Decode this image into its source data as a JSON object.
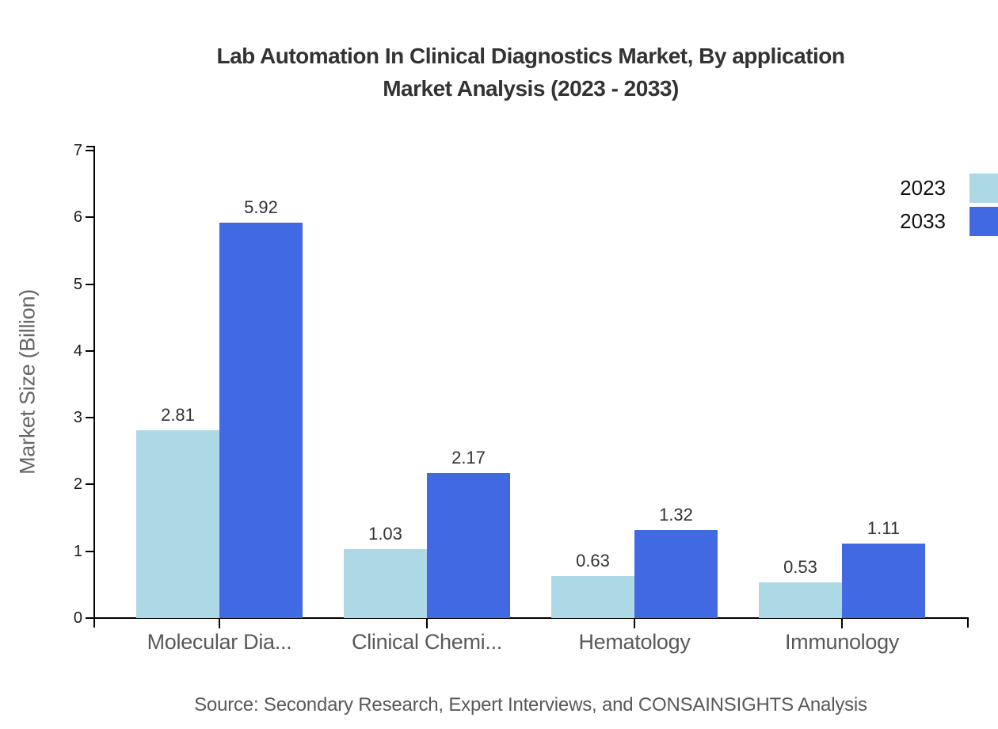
{
  "chart_data": {
    "type": "bar",
    "title": "Lab Automation In Clinical Diagnostics Market, By application Market Analysis (2023 - 2033)",
    "title_lines": [
      "Lab Automation In Clinical Diagnostics Market, By application",
      "Market Analysis (2023 - 2033)"
    ],
    "categories": [
      "Molecular Dia...",
      "Clinical Chemi...",
      "Hematology",
      "Immunology"
    ],
    "series": [
      {
        "name": "2023",
        "color": "#ADD8E6",
        "values": [
          2.81,
          1.03,
          0.63,
          0.53
        ]
      },
      {
        "name": "2033",
        "color": "#4169E1",
        "values": [
          5.92,
          2.17,
          1.32,
          1.11
        ]
      }
    ],
    "xlabel": "",
    "ylabel": "Market Size (Billion)",
    "ylim": [
      0,
      7
    ],
    "yticks": [
      0,
      1,
      2,
      3,
      4,
      5,
      6,
      7
    ],
    "bar_value_labels": [
      "2.81",
      "5.92",
      "1.03",
      "2.17",
      "0.63",
      "1.32",
      "0.53",
      "1.11"
    ],
    "legend_position": "top-right",
    "grid": false,
    "axis_color": "#000000",
    "colors": {
      "series_2023": "#ADD8E6",
      "series_2033": "#4169E1",
      "title_text": "#333333",
      "axis_text": "#595959"
    },
    "source": "Source: Secondary Research, Expert Interviews, and CONSAINSIGHTS Analysis"
  }
}
